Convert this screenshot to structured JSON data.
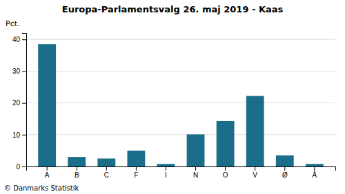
{
  "chart_data": {
    "type": "bar",
    "title": "Europa-Parlamentsvalg 26. maj 2019 - Kaas",
    "categories": [
      "A",
      "B",
      "C",
      "F",
      "I",
      "N",
      "O",
      "V",
      "Ø",
      "Å"
    ],
    "values": [
      38.5,
      3.0,
      2.5,
      5.0,
      0.8,
      10.1,
      14.3,
      22.2,
      3.5,
      0.8
    ],
    "color": "#1a6e8a",
    "ylabel": "Pct.",
    "annotations": [
      "© Danmarks Statistik"
    ],
    "ylim": [
      0,
      42
    ],
    "yticks": [
      0,
      10,
      20,
      30,
      40
    ],
    "grid": true
  }
}
